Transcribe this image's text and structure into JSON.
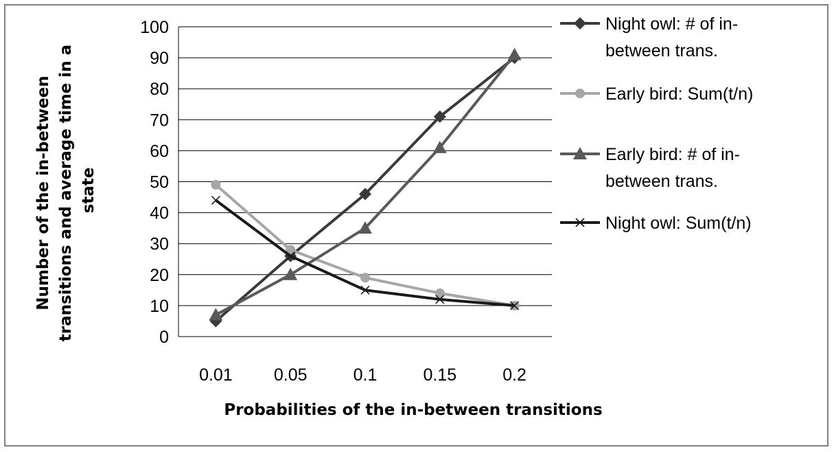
{
  "chart_data": {
    "type": "line",
    "categories": [
      "0.01",
      "0.05",
      "0.1",
      "0.15",
      "0.2"
    ],
    "xlabel": "Probabilities of the in-between transitions",
    "ylabel_lines": [
      "Number of the in-between",
      "transitions and average time in a",
      "state"
    ],
    "ylim": [
      0,
      100
    ],
    "yticks": [
      0,
      10,
      20,
      30,
      40,
      50,
      60,
      70,
      80,
      90,
      100
    ],
    "grid": "horizontal",
    "legend_position": "right",
    "series": [
      {
        "name_lines": [
          "Night owl: # of in-",
          "between trans."
        ],
        "values": [
          5,
          26,
          46,
          71,
          90
        ],
        "marker": "diamond",
        "color": "#3a3a3a"
      },
      {
        "name_lines": [
          "Early bird: Sum(t/n)"
        ],
        "values": [
          49,
          28,
          19,
          14,
          10
        ],
        "marker": "circle",
        "color": "#a6a6a6"
      },
      {
        "name_lines": [
          "Early bird: # of in-",
          "between trans."
        ],
        "values": [
          7,
          20,
          35,
          61,
          91
        ],
        "marker": "triangle",
        "color": "#595959"
      },
      {
        "name_lines": [
          "Night owl: Sum(t/n)"
        ],
        "values": [
          44,
          26,
          15,
          12,
          10
        ],
        "marker": "x",
        "color": "#1a1a1a"
      }
    ]
  }
}
